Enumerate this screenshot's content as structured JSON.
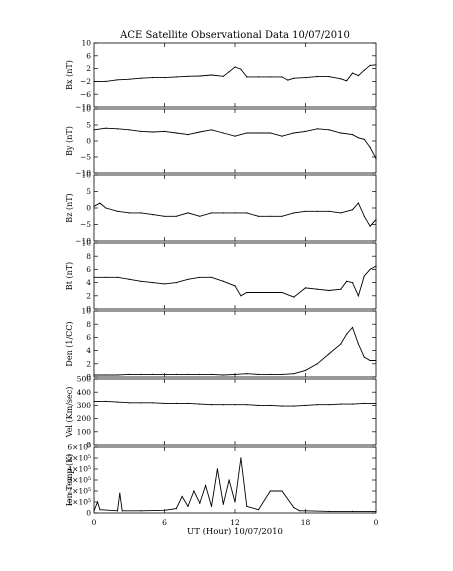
{
  "title": "ACE Satellite Observational Data   10/07/2010",
  "xlabel": "UT (Hour)   10/07/2010",
  "x_ticks": [
    "0",
    "6",
    "12",
    "18",
    "0"
  ],
  "chart_data": [
    {
      "type": "line",
      "ylabel": "Bx (nT)",
      "ylim": [
        -10,
        10
      ],
      "yticks": [
        "10",
        "6",
        "2",
        "−2",
        "−6",
        "−10"
      ],
      "series": [
        {
          "x": [
            0,
            1,
            2,
            3,
            4,
            5,
            6,
            7,
            8,
            9,
            10,
            11,
            11.5,
            12,
            12.5,
            13,
            14,
            15,
            16,
            16.5,
            17,
            18,
            19,
            20,
            21,
            21.5,
            22,
            22.5,
            23,
            23.5,
            24
          ],
          "y": [
            -2.0,
            -2.0,
            -1.5,
            -1.3,
            -1.0,
            -0.8,
            -0.8,
            -0.6,
            -0.4,
            -0.3,
            0,
            -0.4,
            1.0,
            2.5,
            1.8,
            -0.6,
            -0.6,
            -0.6,
            -0.6,
            -1.6,
            -1.0,
            -0.8,
            -0.5,
            -0.5,
            -1.2,
            -1.8,
            0.6,
            -0.2,
            1.5,
            3.0,
            3.2
          ]
        }
      ]
    },
    {
      "type": "line",
      "ylabel": "By (nT)",
      "ylim": [
        -10,
        10
      ],
      "yticks": [
        "10",
        "5",
        "0",
        "−5",
        "−10"
      ],
      "series": [
        {
          "x": [
            0,
            1,
            2,
            3,
            4,
            5,
            6,
            7,
            8,
            9,
            10,
            11,
            12,
            13,
            14,
            15,
            16,
            17,
            18,
            19,
            20,
            21,
            22,
            22.5,
            23,
            23.5,
            24
          ],
          "y": [
            3.5,
            4.0,
            3.8,
            3.5,
            3.0,
            2.8,
            3.0,
            2.5,
            2.0,
            2.8,
            3.5,
            2.5,
            1.5,
            2.5,
            2.5,
            2.5,
            1.5,
            2.5,
            3.0,
            3.8,
            3.5,
            2.5,
            2.0,
            1.0,
            0.5,
            -2.0,
            -5.5
          ]
        }
      ]
    },
    {
      "type": "line",
      "ylabel": "Bz (nT)",
      "ylim": [
        -10,
        10
      ],
      "yticks": [
        "10",
        "5",
        "0",
        "−5",
        "−10"
      ],
      "series": [
        {
          "x": [
            0,
            0.5,
            1,
            2,
            3,
            4,
            5,
            6,
            7,
            8,
            9,
            10,
            11,
            12,
            13,
            14,
            15,
            16,
            17,
            18,
            19,
            20,
            21,
            22,
            22.5,
            23,
            23.5,
            24
          ],
          "y": [
            0.5,
            1.5,
            0,
            -1.0,
            -1.5,
            -1.5,
            -2.0,
            -2.5,
            -2.5,
            -1.5,
            -2.5,
            -1.5,
            -1.5,
            -1.5,
            -1.5,
            -2.5,
            -2.5,
            -2.5,
            -1.5,
            -1.0,
            -1.0,
            -1.0,
            -1.5,
            -0.5,
            1.5,
            -2.5,
            -5.5,
            -3.5
          ]
        }
      ]
    },
    {
      "type": "line",
      "ylabel": "Bt (nT)",
      "ylim": [
        0,
        10
      ],
      "yticks": [
        "10",
        "8",
        "6",
        "4",
        "2",
        "0"
      ],
      "series": [
        {
          "x": [
            0,
            1,
            2,
            3,
            4,
            5,
            6,
            7,
            8,
            9,
            10,
            11,
            12,
            12.5,
            13,
            14,
            15,
            16,
            17,
            18,
            19,
            20,
            21,
            21.5,
            22,
            22.5,
            23,
            23.5,
            24
          ],
          "y": [
            4.8,
            4.8,
            4.8,
            4.5,
            4.2,
            4.0,
            3.8,
            4.0,
            4.5,
            4.8,
            4.8,
            4.2,
            3.5,
            2.0,
            2.5,
            2.5,
            2.5,
            2.5,
            1.8,
            3.2,
            3.0,
            2.8,
            3.0,
            4.2,
            4.0,
            2.0,
            5.0,
            6.0,
            6.5
          ]
        }
      ]
    },
    {
      "type": "line",
      "ylabel": "Den (1/CC)",
      "ylim": [
        0,
        10
      ],
      "yticks": [
        "10",
        "8",
        "6",
        "4",
        "2",
        "0"
      ],
      "series": [
        {
          "x": [
            0,
            1,
            2,
            3,
            4,
            5,
            6,
            7,
            8,
            9,
            10,
            11,
            12,
            13,
            14,
            15,
            16,
            17,
            18,
            19,
            20,
            21,
            21.5,
            22,
            22.5,
            23,
            23.5,
            24
          ],
          "y": [
            0.3,
            0.3,
            0.3,
            0.4,
            0.4,
            0.4,
            0.4,
            0.4,
            0.4,
            0.4,
            0.4,
            0.3,
            0.4,
            0.5,
            0.4,
            0.4,
            0.4,
            0.5,
            1.0,
            2.0,
            3.5,
            5.0,
            6.5,
            7.5,
            5.0,
            3.0,
            2.5,
            2.5
          ]
        }
      ]
    },
    {
      "type": "line",
      "ylabel": "Vel (Km/sec)",
      "ylim": [
        0,
        500
      ],
      "yticks": [
        "500",
        "400",
        "300",
        "200",
        "100",
        "0"
      ],
      "series": [
        {
          "x": [
            0,
            1,
            2,
            3,
            4,
            5,
            6,
            7,
            8,
            9,
            10,
            11,
            12,
            13,
            14,
            15,
            16,
            17,
            18,
            19,
            20,
            21,
            22,
            23,
            24
          ],
          "y": [
            330,
            330,
            325,
            320,
            320,
            320,
            315,
            315,
            315,
            310,
            305,
            305,
            305,
            305,
            300,
            300,
            295,
            295,
            300,
            305,
            305,
            310,
            310,
            315,
            315
          ]
        }
      ]
    },
    {
      "type": "line",
      "ylabel": "Ion Temp (K)",
      "ylim": [
        0,
        600000
      ],
      "yticks": [
        "6×10⁵",
        "5×10⁵",
        "4×10⁵",
        "3×10⁵",
        "2×10⁵",
        "1×10⁵",
        "0"
      ],
      "series": [
        {
          "x": [
            0,
            0.3,
            0.5,
            2,
            2.2,
            2.4,
            4,
            6,
            7,
            7.5,
            8,
            8.5,
            9,
            9.5,
            10,
            10.5,
            11,
            11.5,
            12,
            12.5,
            13,
            14,
            15,
            16,
            17,
            17.5,
            18,
            20,
            22,
            24
          ],
          "y": [
            20000,
            100000,
            30000,
            20000,
            180000,
            20000,
            20000,
            25000,
            40000,
            150000,
            60000,
            200000,
            90000,
            250000,
            60000,
            400000,
            80000,
            300000,
            100000,
            500000,
            60000,
            30000,
            200000,
            200000,
            50000,
            20000,
            20000,
            15000,
            15000,
            15000
          ]
        }
      ]
    }
  ]
}
